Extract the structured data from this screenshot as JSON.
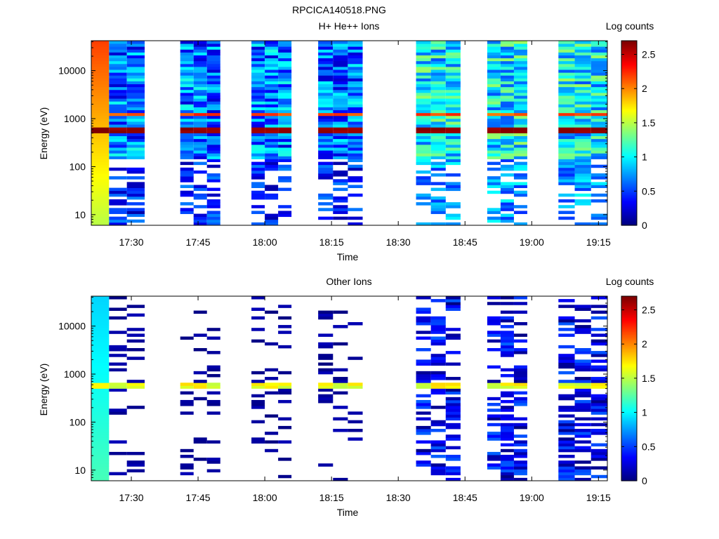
{
  "figure_title": "RPCICA140518.PNG",
  "colors": {
    "colormap": "jet",
    "background": "#ffffff",
    "axis": "#000000"
  },
  "chart_data": [
    {
      "type": "heatmap",
      "title": "H+ He++ Ions",
      "xlabel": "Time",
      "ylabel": "Energy (eV)",
      "colorbar_label": "Log counts",
      "yscale": "log",
      "ylim": [
        6,
        42000
      ],
      "xlim": [
        "17:21",
        "19:17"
      ],
      "x_ticks": [
        "17:30",
        "17:45",
        "18:00",
        "18:15",
        "18:30",
        "18:45",
        "19:00",
        "19:15"
      ],
      "y_ticks": [
        "10",
        "100",
        "1000",
        "10000"
      ],
      "clim": [
        0,
        2.7
      ],
      "colorbar_ticks": [
        "0",
        "0.5",
        "1",
        "1.5",
        "2",
        "2.5"
      ],
      "time_blocks": [
        {
          "start": "17:21",
          "end": "17:33"
        },
        {
          "start": "17:41",
          "end": "17:50"
        },
        {
          "start": "17:57",
          "end": "18:06"
        },
        {
          "start": "18:12",
          "end": "18:22"
        },
        {
          "start": "18:34",
          "end": "18:44"
        },
        {
          "start": "18:50",
          "end": "18:59"
        },
        {
          "start": "19:06",
          "end": "19:17"
        }
      ],
      "description_of_values": "log10 counts per time–energy bin; background level ~0.5–1.3, band near 600 eV ~2.5–2.7, band near 1200 eV ~2.0"
    },
    {
      "type": "heatmap",
      "title": "Other Ions",
      "xlabel": "Time",
      "ylabel": "Energy (eV)",
      "colorbar_label": "Log counts",
      "yscale": "log",
      "ylim": [
        6,
        42000
      ],
      "xlim": [
        "17:21",
        "19:17"
      ],
      "x_ticks": [
        "17:30",
        "17:45",
        "18:00",
        "18:15",
        "18:30",
        "18:45",
        "19:00",
        "19:15"
      ],
      "y_ticks": [
        "10",
        "100",
        "1000",
        "10000"
      ],
      "clim": [
        0,
        2.7
      ],
      "colorbar_ticks": [
        "0",
        "0.5",
        "1",
        "1.5",
        "2",
        "2.5"
      ],
      "time_blocks": [
        {
          "start": "17:21",
          "end": "17:33"
        },
        {
          "start": "17:41",
          "end": "17:50"
        },
        {
          "start": "17:57",
          "end": "18:06"
        },
        {
          "start": "18:12",
          "end": "18:22"
        },
        {
          "start": "18:34",
          "end": "18:44"
        },
        {
          "start": "18:50",
          "end": "18:59"
        },
        {
          "start": "19:06",
          "end": "19:17"
        }
      ],
      "description_of_values": "sparse bins ~0–0.3; band near 550 eV ~1.3–1.7; later blocks denser ~0–0.6"
    }
  ]
}
